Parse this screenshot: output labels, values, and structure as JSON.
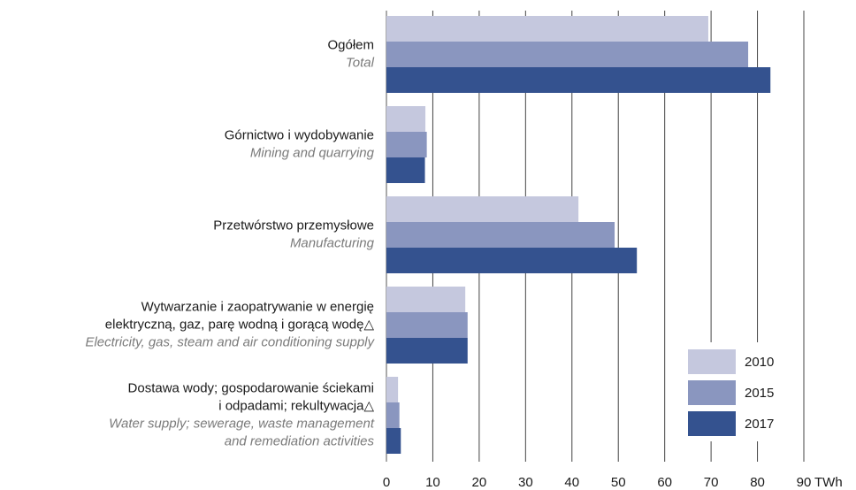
{
  "chart_data": {
    "type": "hbar",
    "categories": [
      {
        "pl": [
          "Ogółem"
        ],
        "en": [
          "Total"
        ]
      },
      {
        "pl": [
          "Górnictwo i wydobywanie"
        ],
        "en": [
          "Mining and quarrying"
        ]
      },
      {
        "pl": [
          "Przetwórstwo przemysłowe"
        ],
        "en": [
          "Manufacturing"
        ]
      },
      {
        "pl": [
          "Wytwarzanie i zaopatrywanie w energię",
          "elektryczną, gaz, parę wodną i gorącą wodę△"
        ],
        "en": [
          "Electricity, gas, steam and air conditioning supply"
        ]
      },
      {
        "pl": [
          "Dostawa wody; gospodarowanie ściekami",
          "i odpadami; rekultywacja△"
        ],
        "en": [
          "Water supply; sewerage, waste management",
          "and remediation activities"
        ]
      }
    ],
    "series": [
      {
        "name": "2010",
        "color": "#c5c8de",
        "values": [
          69.4,
          8.4,
          41.4,
          17,
          2.5
        ]
      },
      {
        "name": "2015",
        "color": "#8a96bf",
        "values": [
          78,
          8.7,
          49.2,
          17.5,
          2.8
        ]
      },
      {
        "name": "2017",
        "color": "#34528f",
        "values": [
          82.8,
          8.3,
          54,
          17.5,
          3.1
        ]
      }
    ],
    "xlim": [
      0,
      90
    ],
    "xticks": [
      0,
      10,
      20,
      30,
      40,
      50,
      60,
      70,
      80,
      90
    ],
    "x_unit": "TWh",
    "grid": true,
    "legend": "bottom-right"
  }
}
